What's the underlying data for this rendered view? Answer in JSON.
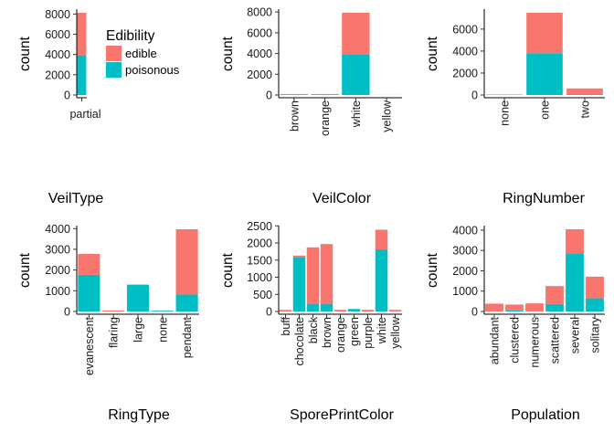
{
  "colors": {
    "edible": "#F8766D",
    "poisonous": "#00BFC4"
  },
  "legend": {
    "title": "Edibility",
    "items": [
      {
        "label": "edible",
        "color": "#F8766D"
      },
      {
        "label": "poisonous",
        "color": "#00BFC4"
      }
    ]
  },
  "chart_data": [
    {
      "type": "bar",
      "title": "VeilType",
      "ylabel": "count",
      "ylim": [
        0,
        8124
      ],
      "yticks": [
        0,
        2000,
        4000,
        6000,
        8000
      ],
      "categories": [
        "partial"
      ],
      "series": [
        {
          "name": "edible",
          "values": [
            4208
          ]
        },
        {
          "name": "poisonous",
          "values": [
            3916
          ]
        }
      ]
    },
    {
      "type": "bar",
      "title": "VeilColor",
      "ylabel": "count",
      "ylim": [
        0,
        7924
      ],
      "yticks": [
        0,
        2000,
        4000,
        6000,
        8000
      ],
      "categories": [
        "brown",
        "orange",
        "white",
        "yellow"
      ],
      "series": [
        {
          "name": "edible",
          "values": [
            96,
            96,
            4016,
            0
          ]
        },
        {
          "name": "poisonous",
          "values": [
            0,
            0,
            3908,
            8
          ]
        }
      ]
    },
    {
      "type": "bar",
      "title": "RingNumber",
      "ylabel": "count",
      "ylim": [
        0,
        7488
      ],
      "yticks": [
        0,
        2000,
        4000,
        6000
      ],
      "categories": [
        "none",
        "one",
        "two"
      ],
      "series": [
        {
          "name": "edible",
          "values": [
            0,
            3680,
            528
          ]
        },
        {
          "name": "poisonous",
          "values": [
            36,
            3808,
            72
          ]
        }
      ]
    },
    {
      "type": "bar",
      "title": "RingType",
      "ylabel": "count",
      "ylim": [
        0,
        3968
      ],
      "yticks": [
        0,
        1000,
        2000,
        3000,
        4000
      ],
      "categories": [
        "evanescent",
        "flaring",
        "large",
        "none",
        "pendant"
      ],
      "series": [
        {
          "name": "edible",
          "values": [
            1008,
            48,
            0,
            0,
            3152
          ]
        },
        {
          "name": "poisonous",
          "values": [
            1768,
            0,
            1296,
            36,
            816
          ]
        }
      ]
    },
    {
      "type": "bar",
      "title": "SporePrintColor",
      "ylabel": "count",
      "ylim": [
        0,
        2400
      ],
      "yticks": [
        0,
        500,
        1000,
        1500,
        2000,
        2500
      ],
      "categories": [
        "buff",
        "chocolate",
        "black",
        "brown",
        "orange",
        "green",
        "purple",
        "white",
        "yellow"
      ],
      "series": [
        {
          "name": "edible",
          "values": [
            48,
            48,
            1648,
            1744,
            48,
            0,
            48,
            576,
            48
          ]
        },
        {
          "name": "poisonous",
          "values": [
            0,
            1584,
            224,
            224,
            0,
            72,
            0,
            1812,
            0
          ]
        }
      ]
    },
    {
      "type": "bar",
      "title": "Population",
      "ylabel": "count",
      "ylim": [
        0,
        4040
      ],
      "yticks": [
        0,
        1000,
        2000,
        3000,
        4000
      ],
      "categories": [
        "abundant",
        "clustered",
        "numerous",
        "scattered",
        "several",
        "solitary"
      ],
      "series": [
        {
          "name": "edible",
          "values": [
            384,
            288,
            400,
            880,
            1192,
            1064
          ]
        },
        {
          "name": "poisonous",
          "values": [
            0,
            52,
            0,
            368,
            2848,
            648
          ]
        }
      ]
    }
  ]
}
